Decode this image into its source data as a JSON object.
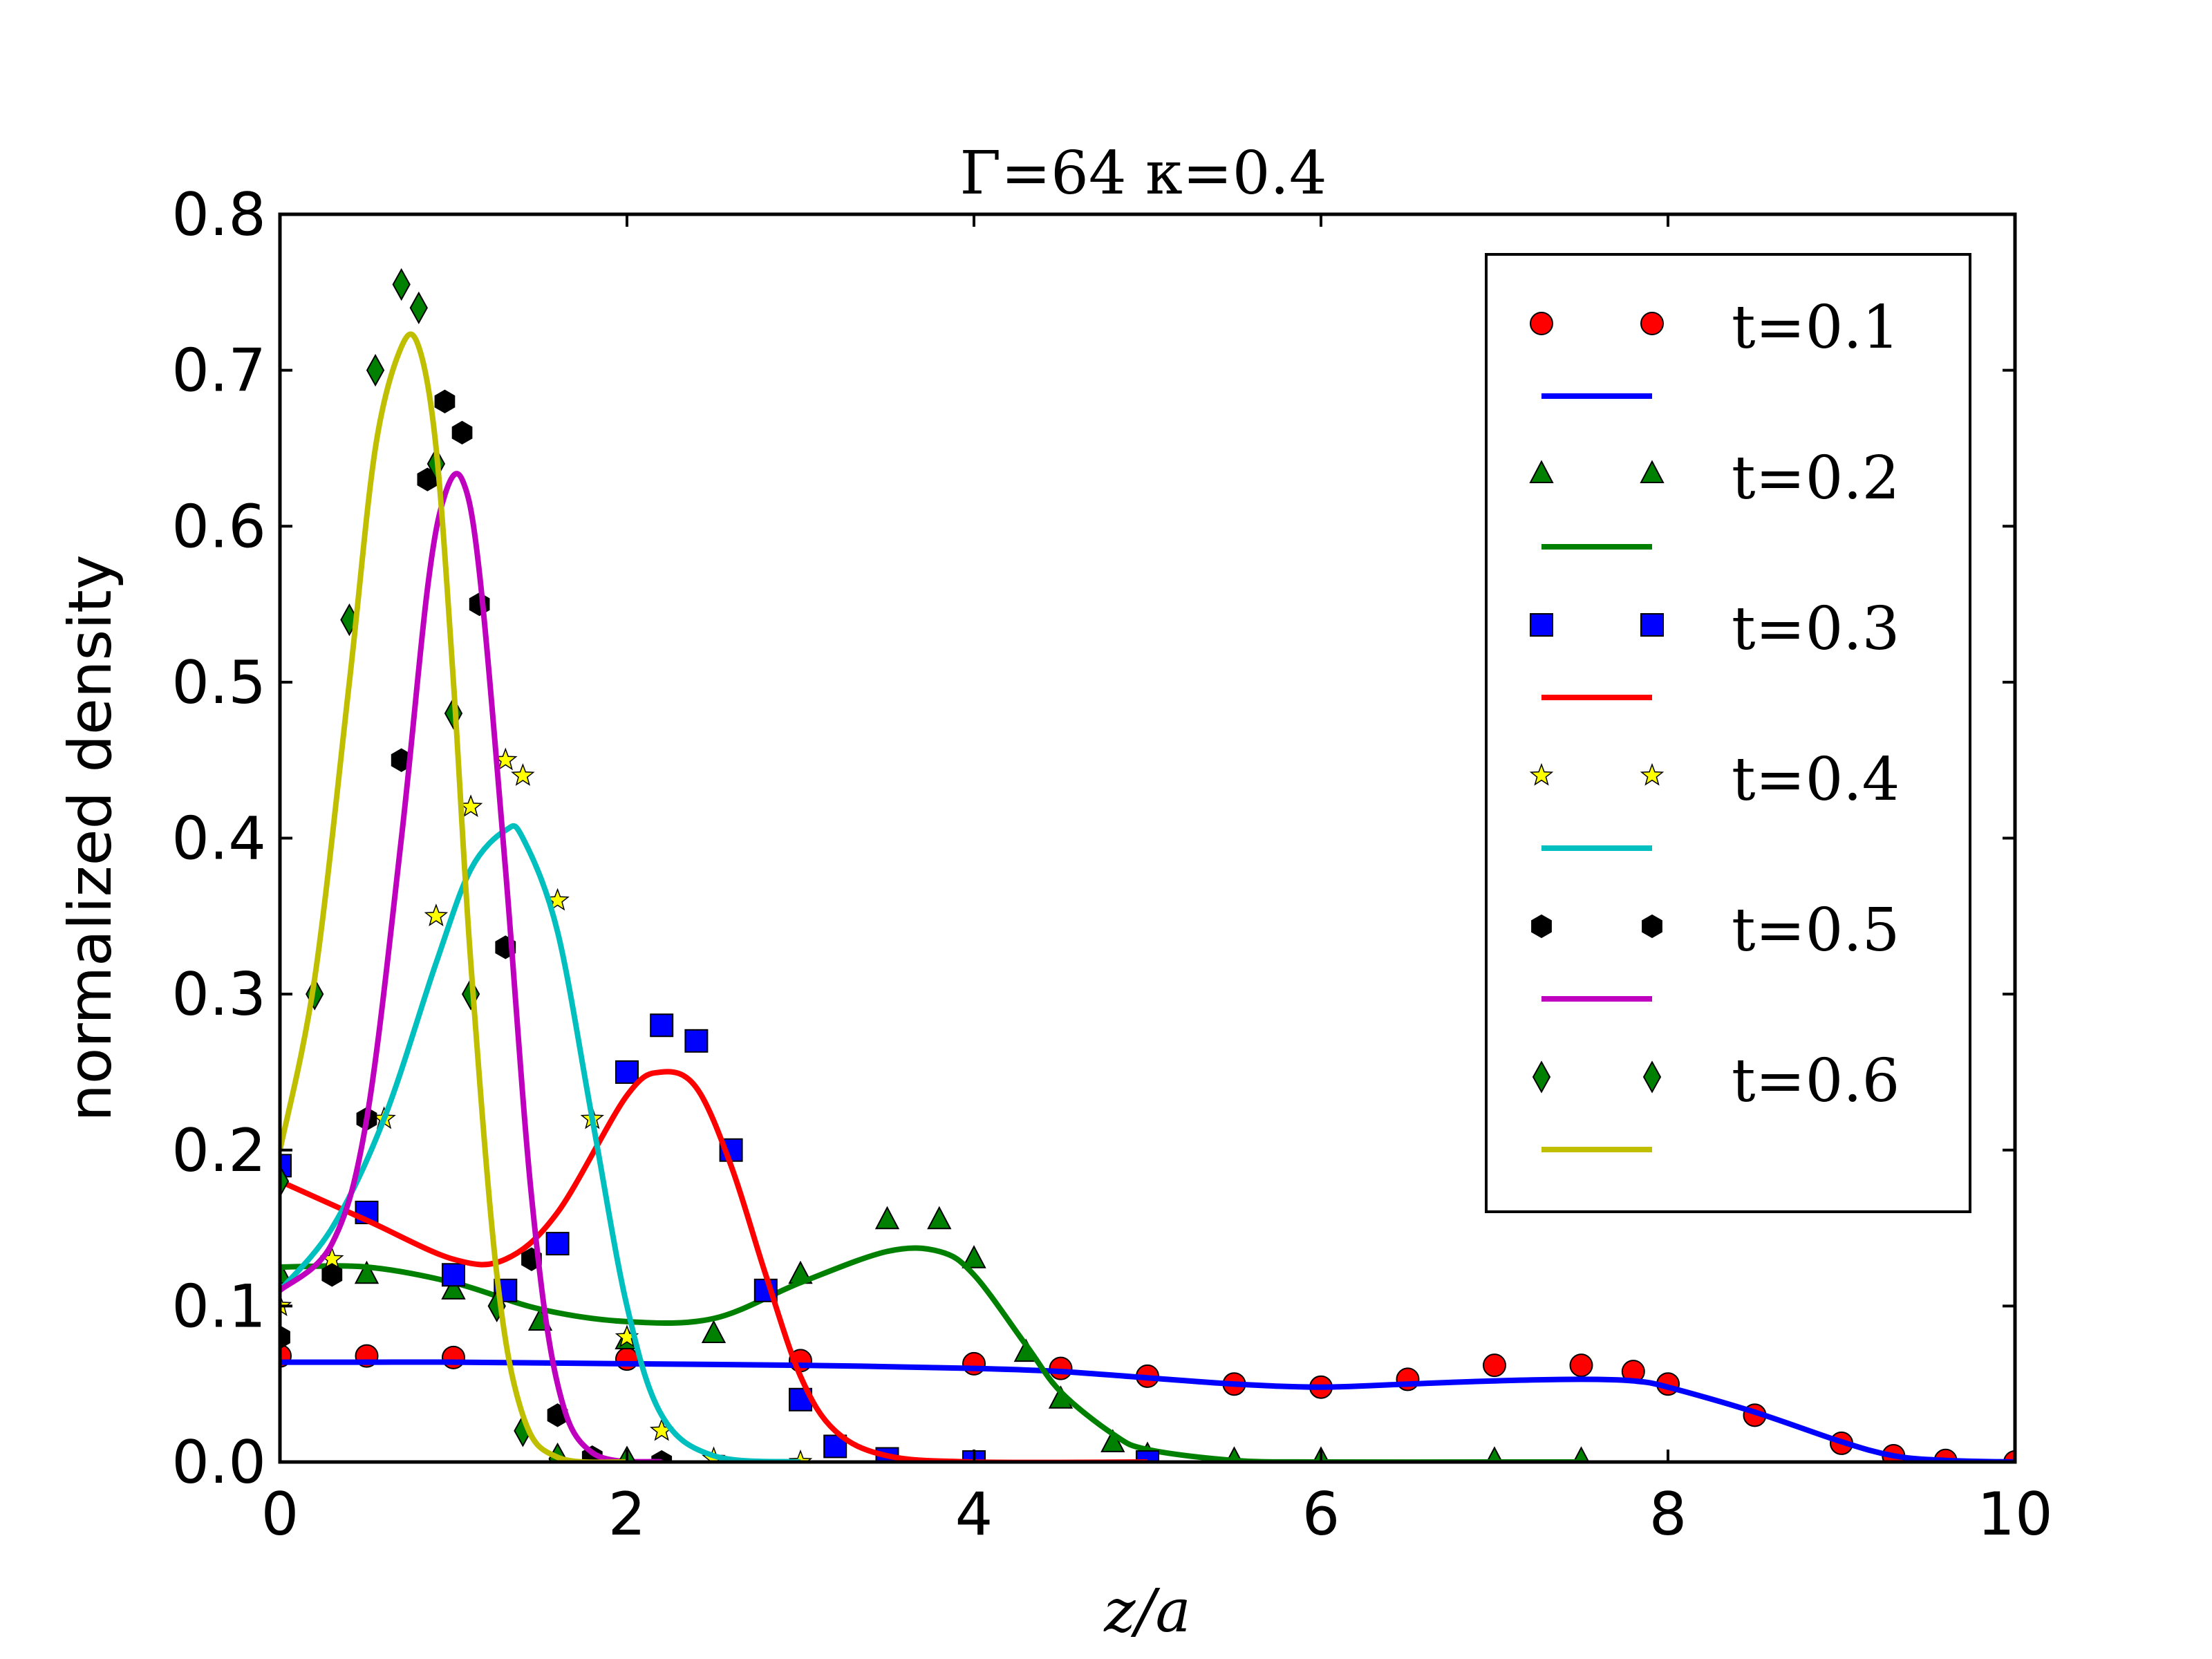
{
  "chart_data": {
    "type": "line",
    "title": "Γ=64 κ=0.4",
    "xlabel": "z/a",
    "ylabel": "normalized density",
    "xlim": [
      0,
      10
    ],
    "ylim": [
      0,
      0.8
    ],
    "xticks": [
      "0",
      "2",
      "4",
      "6",
      "8",
      "10"
    ],
    "yticks": [
      "0.0",
      "0.1",
      "0.2",
      "0.3",
      "0.4",
      "0.5",
      "0.6",
      "0.7",
      "0.8"
    ],
    "grid": false,
    "legend_position": "top-right",
    "series": [
      {
        "name": "t=0.1",
        "marker": "circle",
        "marker_color": "#ff0000",
        "line_color": "#0000ff",
        "x": [
          0,
          0.5,
          1,
          2,
          3,
          4,
          4.5,
          5,
          5.5,
          6,
          6.5,
          7,
          7.5,
          7.8,
          8,
          8.5,
          9,
          9.3,
          9.6,
          10
        ],
        "points": [
          0.068,
          0.068,
          0.067,
          0.066,
          0.065,
          0.063,
          0.06,
          0.055,
          0.05,
          0.048,
          0.053,
          0.062,
          0.062,
          0.058,
          0.05,
          0.03,
          0.012,
          0.004,
          0.001,
          0.0
        ],
        "fit": [
          0.064,
          0.064,
          0.064,
          0.063,
          0.062,
          0.06,
          0.058,
          0.054,
          0.05,
          0.048,
          0.05,
          0.052,
          0.053,
          0.052,
          0.048,
          0.032,
          0.013,
          0.004,
          0.001,
          0.0
        ]
      },
      {
        "name": "t=0.2",
        "marker": "triangle",
        "marker_color": "#008000",
        "line_color": "#008000",
        "x": [
          0,
          0.5,
          1,
          1.5,
          2,
          2.5,
          3,
          3.5,
          3.8,
          4,
          4.3,
          4.5,
          4.8,
          5,
          5.5,
          6,
          7,
          7.5
        ],
        "points": [
          0.12,
          0.12,
          0.11,
          0.09,
          0.078,
          0.082,
          0.12,
          0.155,
          0.155,
          0.13,
          0.07,
          0.04,
          0.012,
          0.004,
          0.001,
          0.001,
          0.001,
          0.001
        ],
        "fit": [
          0.125,
          0.125,
          0.115,
          0.098,
          0.09,
          0.092,
          0.115,
          0.135,
          0.135,
          0.12,
          0.075,
          0.045,
          0.018,
          0.008,
          0.001,
          0.0,
          0.0,
          0.0
        ]
      },
      {
        "name": "t=0.3",
        "marker": "square",
        "marker_color": "#0000ff",
        "line_color": "#ff0000",
        "x": [
          0,
          0.5,
          1,
          1.3,
          1.6,
          2,
          2.2,
          2.4,
          2.6,
          2.8,
          3,
          3.2,
          3.5,
          4,
          5
        ],
        "points": [
          0.19,
          0.16,
          0.12,
          0.11,
          0.14,
          0.25,
          0.28,
          0.27,
          0.2,
          0.11,
          0.04,
          0.01,
          0.002,
          0.0,
          0.0
        ],
        "fit": [
          0.18,
          0.155,
          0.13,
          0.13,
          0.16,
          0.235,
          0.25,
          0.24,
          0.19,
          0.12,
          0.055,
          0.02,
          0.004,
          0.0,
          0.0
        ]
      },
      {
        "name": "t=0.4",
        "marker": "star",
        "marker_color": "#ffff00",
        "line_color": "#00bfbf",
        "x": [
          0,
          0.3,
          0.6,
          0.9,
          1.1,
          1.3,
          1.4,
          1.6,
          1.8,
          2,
          2.2,
          2.5,
          3
        ],
        "points": [
          0.1,
          0.13,
          0.22,
          0.35,
          0.42,
          0.45,
          0.44,
          0.36,
          0.22,
          0.08,
          0.02,
          0.002,
          0.0
        ],
        "fit": [
          0.11,
          0.15,
          0.22,
          0.32,
          0.38,
          0.405,
          0.4,
          0.34,
          0.22,
          0.1,
          0.03,
          0.004,
          0.0
        ]
      },
      {
        "name": "t=0.5",
        "marker": "hexagon",
        "marker_color": "#000000",
        "line_color": "#bf00bf",
        "x": [
          0,
          0.3,
          0.5,
          0.7,
          0.85,
          0.95,
          1.05,
          1.15,
          1.3,
          1.45,
          1.6,
          1.8,
          2.2
        ],
        "points": [
          0.08,
          0.12,
          0.22,
          0.45,
          0.63,
          0.68,
          0.66,
          0.55,
          0.33,
          0.13,
          0.03,
          0.003,
          0.0
        ],
        "fit": [
          0.11,
          0.14,
          0.22,
          0.4,
          0.56,
          0.62,
          0.63,
          0.57,
          0.38,
          0.17,
          0.05,
          0.006,
          0.0
        ]
      },
      {
        "name": "t=0.6",
        "marker": "diamond",
        "marker_color": "#008000",
        "line_color": "#bfbf00",
        "x": [
          0,
          0.2,
          0.4,
          0.55,
          0.7,
          0.8,
          0.9,
          1.0,
          1.1,
          1.25,
          1.4,
          1.6,
          2
        ],
        "points": [
          0.18,
          0.3,
          0.54,
          0.7,
          0.755,
          0.74,
          0.64,
          0.48,
          0.3,
          0.1,
          0.02,
          0.002,
          0.0
        ],
        "fit": [
          0.2,
          0.31,
          0.5,
          0.65,
          0.715,
          0.715,
          0.65,
          0.5,
          0.32,
          0.12,
          0.03,
          0.003,
          0.0
        ]
      }
    ]
  }
}
